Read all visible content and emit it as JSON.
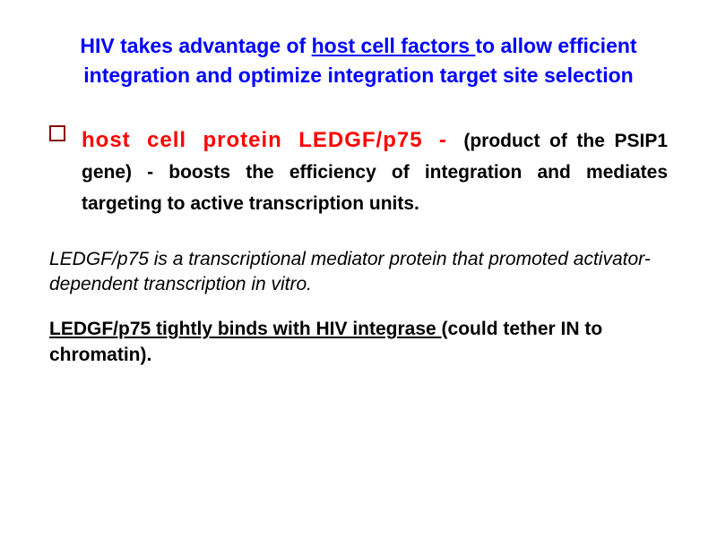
{
  "title": {
    "pre": "HIV takes advantage of ",
    "underlined": "host cell factors ",
    "post1": "to allow efficient integration and optimize integration target site selection"
  },
  "bullet": {
    "lead": "host cell protein LEDGF/p75 - ",
    "rest": "(product of the PSIP1 gene) - boosts the efficiency of integration and mediates targeting to active transcription units."
  },
  "para1": "LEDGF/p75 is a transcriptional mediator protein that promoted activator-dependent transcription in vitro.",
  "para2": {
    "bold_underlined": "LEDGF/p75 tightly binds with HIV integrase ",
    "rest": "(could tether IN to chromatin)."
  },
  "colors": {
    "title": "#0000ff",
    "lead": "#ff0000",
    "bullet_border": "#8b0000",
    "text": "#000000",
    "background": "#ffffff"
  }
}
